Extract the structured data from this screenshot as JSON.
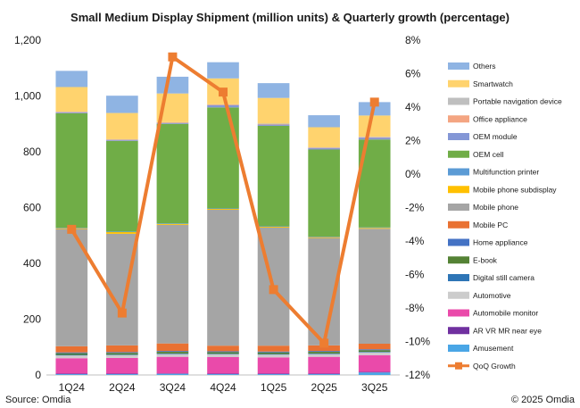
{
  "chart_data": {
    "type": "bar",
    "stacked": true,
    "title": "Small Medium Display Shipment (million units) & Quarterly growth (percentage)",
    "categories": [
      "1Q24",
      "2Q24",
      "3Q24",
      "4Q24",
      "1Q25",
      "2Q25",
      "3Q25"
    ],
    "ylim": [
      0,
      1200
    ],
    "yticks": [
      "0",
      "200",
      "400",
      "600",
      "800",
      "1,000",
      "1,200"
    ],
    "y2lim": [
      -12,
      8
    ],
    "y2ticks": [
      "-12%",
      "-10%",
      "-8%",
      "-6%",
      "-4%",
      "-2%",
      "0%",
      "2%",
      "4%",
      "6%",
      "8%"
    ],
    "legend_position": "right",
    "series": [
      {
        "name": "Amusement",
        "color": "#4aa6e6",
        "values": [
          3,
          3,
          4,
          3,
          3,
          3,
          9
        ]
      },
      {
        "name": "AR VR MR near eye",
        "color": "#7030a0",
        "values": [
          2,
          2,
          2,
          2,
          2,
          2,
          2
        ]
      },
      {
        "name": "Automobile monitor",
        "color": "#ea4aaa",
        "values": [
          55,
          56,
          59,
          59,
          58,
          60,
          60
        ]
      },
      {
        "name": "Automotive",
        "color": "#cccccc",
        "values": [
          10,
          10,
          10,
          10,
          10,
          10,
          10
        ]
      },
      {
        "name": "Digital still camera",
        "color": "#2e75b6",
        "values": [
          2,
          2,
          2,
          2,
          2,
          2,
          2
        ]
      },
      {
        "name": "E-book",
        "color": "#548235",
        "values": [
          6,
          6,
          6,
          6,
          6,
          6,
          6
        ]
      },
      {
        "name": "Home appliance",
        "color": "#4472c4",
        "values": [
          3,
          3,
          3,
          3,
          3,
          3,
          3
        ]
      },
      {
        "name": "Mobile PC",
        "color": "#e97132",
        "values": [
          22,
          24,
          27,
          20,
          21,
          20,
          20
        ]
      },
      {
        "name": "Mobile phone",
        "color": "#a5a5a5",
        "values": [
          420,
          400,
          425,
          487,
          423,
          385,
          412
        ]
      },
      {
        "name": "Mobile phone subdisplay",
        "color": "#ffc000",
        "values": [
          3,
          6,
          3,
          3,
          3,
          3,
          3
        ]
      },
      {
        "name": "Multifunction printer",
        "color": "#5b9bd5",
        "values": [
          2,
          2,
          2,
          2,
          2,
          2,
          2
        ]
      },
      {
        "name": "OEM cell",
        "color": "#70ad47",
        "values": [
          410,
          325,
          357,
          362,
          360,
          312,
          315
        ]
      },
      {
        "name": "OEM module",
        "color": "#8497d6",
        "values": [
          3,
          3,
          3,
          8,
          5,
          5,
          7
        ]
      },
      {
        "name": "Office appliance",
        "color": "#f4a582",
        "values": [
          1,
          1,
          1,
          1,
          1,
          1,
          1
        ]
      },
      {
        "name": "Portable navigation device",
        "color": "#bfbfbf",
        "values": [
          2,
          2,
          2,
          2,
          2,
          2,
          2
        ]
      },
      {
        "name": "Smartwatch",
        "color": "#ffd36e",
        "values": [
          88,
          94,
          103,
          93,
          92,
          72,
          76
        ]
      },
      {
        "name": "Others",
        "color": "#8fb4e3",
        "values": [
          58,
          62,
          60,
          58,
          53,
          43,
          48
        ]
      }
    ],
    "line_series": {
      "name": "QoQ Growth",
      "color": "#ed7d31",
      "axis": "right",
      "values": [
        -3.3,
        -8.3,
        7.0,
        4.9,
        -6.9,
        -10.1,
        4.3
      ]
    }
  },
  "footer": {
    "source": "Source: Omdia",
    "copyright": "© 2025 Omdia"
  }
}
